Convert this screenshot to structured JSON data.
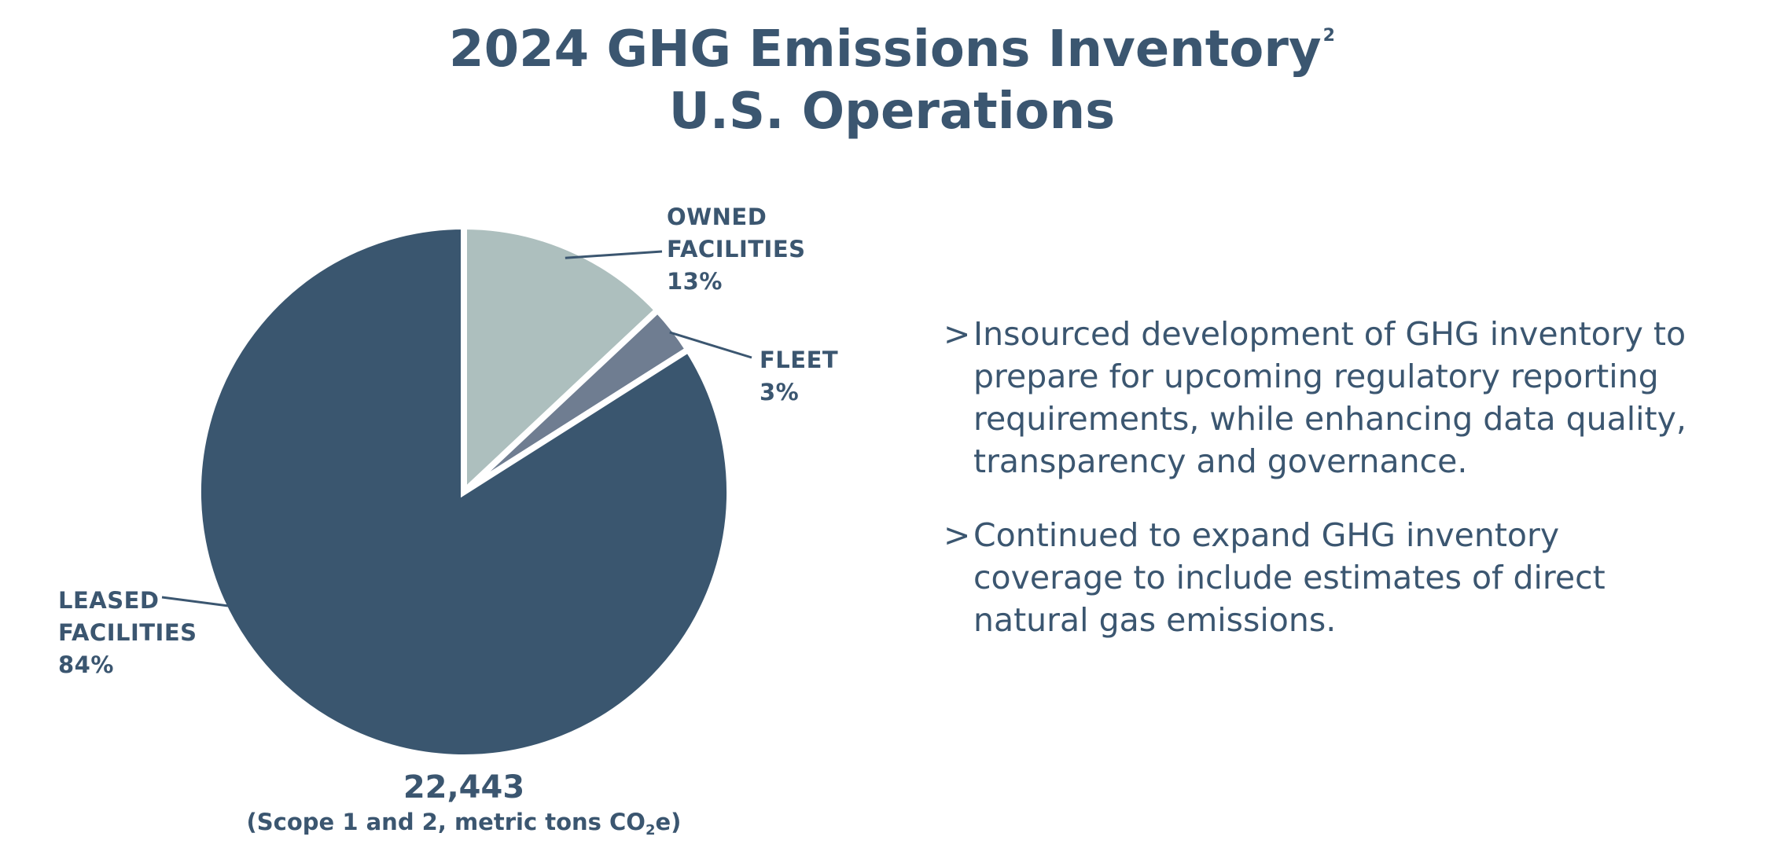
{
  "title": {
    "line1": "2024 GHG Emissions Inventory",
    "footnote": "2",
    "line2": "U.S. Operations"
  },
  "colors": {
    "text": "#3b5670",
    "leased": "#3a566f",
    "owned": "#adbfbe",
    "fleet": "#6f7d91"
  },
  "chart_data": {
    "type": "pie",
    "slices": [
      {
        "name": "OWNED FACILITIES",
        "line1": "OWNED",
        "line2": "FACILITIES",
        "value": 13,
        "pct_label": "13%",
        "color": "#adbfbe"
      },
      {
        "name": "FLEET",
        "line1": "FLEET",
        "line2": "",
        "value": 3,
        "pct_label": "3%",
        "color": "#6f7d91"
      },
      {
        "name": "LEASED FACILITIES",
        "line1": "LEASED",
        "line2": "FACILITIES",
        "value": 84,
        "pct_label": "84%",
        "color": "#3a566f"
      }
    ],
    "total": "22,443",
    "total_note": {
      "before": "(Scope 1 and 2, metric tons CO",
      "sub": "2",
      "after": "e)"
    }
  },
  "bullets": [
    {
      "marker": ">",
      "lines": [
        "Insourced development of GHG inventory to",
        "prepare for upcoming regulatory reporting",
        "requirements, while enhancing data quality,",
        "transparency and governance."
      ]
    },
    {
      "marker": ">",
      "lines": [
        "Continued to expand GHG inventory",
        "coverage to include estimates of direct",
        "natural gas emissions."
      ]
    }
  ]
}
